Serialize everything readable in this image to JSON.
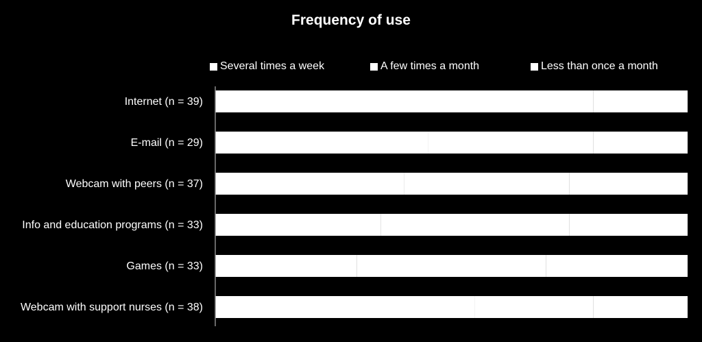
{
  "chart_data": {
    "type": "bar",
    "orientation": "horizontal",
    "stacked": true,
    "title": "Frequency of use",
    "categories": [
      "Internet (n = 39)",
      "E-mail (n = 29)",
      "Webcam with peers (n = 37)",
      "Info and education programs (n = 33)",
      "Games (n = 33)",
      "Webcam with support nurses (n = 38)"
    ],
    "series": [
      {
        "name": "Several times a week",
        "color": "#ffffff",
        "values": [
          50,
          45,
          40,
          35,
          30,
          55
        ]
      },
      {
        "name": "A few times a month",
        "color": "#ffffff",
        "values": [
          30,
          35,
          35,
          40,
          40,
          25
        ]
      },
      {
        "name": "Less than once a month",
        "color": "#ffffff",
        "values": [
          20,
          20,
          25,
          25,
          30,
          20
        ]
      }
    ],
    "xlim": [
      0,
      100
    ],
    "legend_position": "top",
    "grid": false
  }
}
